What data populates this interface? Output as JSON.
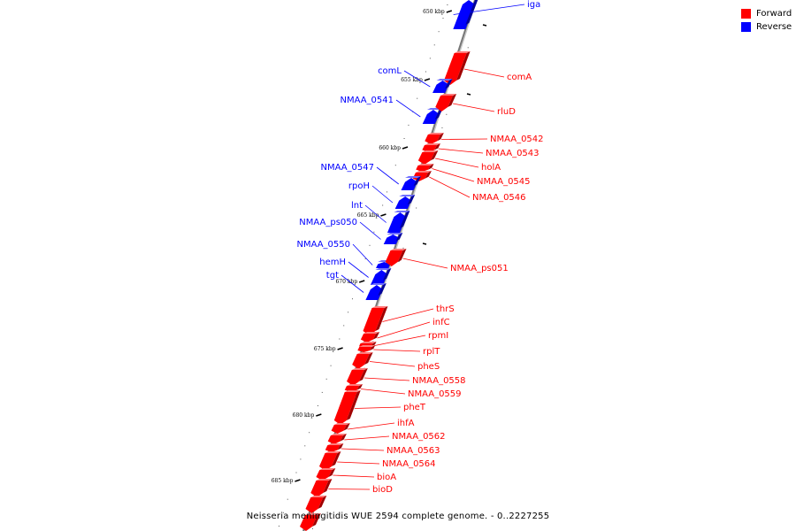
{
  "legend": {
    "forward_label": "Forward",
    "reverse_label": "Reverse",
    "forward_color": "#ff0000",
    "reverse_color": "#0000ff"
  },
  "caption": "Neisseria meningitidis WUE 2594 complete genome. - 0..2227255",
  "tick_labels": [
    "650 kbp",
    "655 kbp",
    "660 kbp",
    "665 kbp",
    "670 kbp",
    "675 kbp",
    "680 kbp",
    "685 kbp"
  ],
  "genes": [
    {
      "name": "iga",
      "strand": "reverse"
    },
    {
      "name": "comA",
      "strand": "forward"
    },
    {
      "name": "comL",
      "strand": "reverse"
    },
    {
      "name": "NMAA_0541",
      "strand": "reverse"
    },
    {
      "name": "rluD",
      "strand": "forward"
    },
    {
      "name": "NMAA_0542",
      "strand": "forward"
    },
    {
      "name": "NMAA_0543",
      "strand": "forward"
    },
    {
      "name": "holA",
      "strand": "forward"
    },
    {
      "name": "NMAA_0545",
      "strand": "forward"
    },
    {
      "name": "NMAA_0546",
      "strand": "forward"
    },
    {
      "name": "NMAA_0547",
      "strand": "reverse"
    },
    {
      "name": "rpoH",
      "strand": "reverse"
    },
    {
      "name": "lnt",
      "strand": "reverse"
    },
    {
      "name": "NMAA_ps050",
      "strand": "reverse"
    },
    {
      "name": "NMAA_0550",
      "strand": "reverse"
    },
    {
      "name": "hemH",
      "strand": "reverse"
    },
    {
      "name": "tgt",
      "strand": "reverse"
    },
    {
      "name": "NMAA_ps051",
      "strand": "forward"
    },
    {
      "name": "thrS",
      "strand": "forward"
    },
    {
      "name": "infC",
      "strand": "forward"
    },
    {
      "name": "rpmI",
      "strand": "forward"
    },
    {
      "name": "rplT",
      "strand": "forward"
    },
    {
      "name": "pheS",
      "strand": "forward"
    },
    {
      "name": "NMAA_0558",
      "strand": "forward"
    },
    {
      "name": "NMAA_0559",
      "strand": "forward"
    },
    {
      "name": "pheT",
      "strand": "forward"
    },
    {
      "name": "ihfA",
      "strand": "forward"
    },
    {
      "name": "NMAA_0562",
      "strand": "forward"
    },
    {
      "name": "NMAA_0563",
      "strand": "forward"
    },
    {
      "name": "NMAA_0564",
      "strand": "forward"
    },
    {
      "name": "bioA",
      "strand": "forward"
    },
    {
      "name": "bioD",
      "strand": "forward"
    }
  ]
}
